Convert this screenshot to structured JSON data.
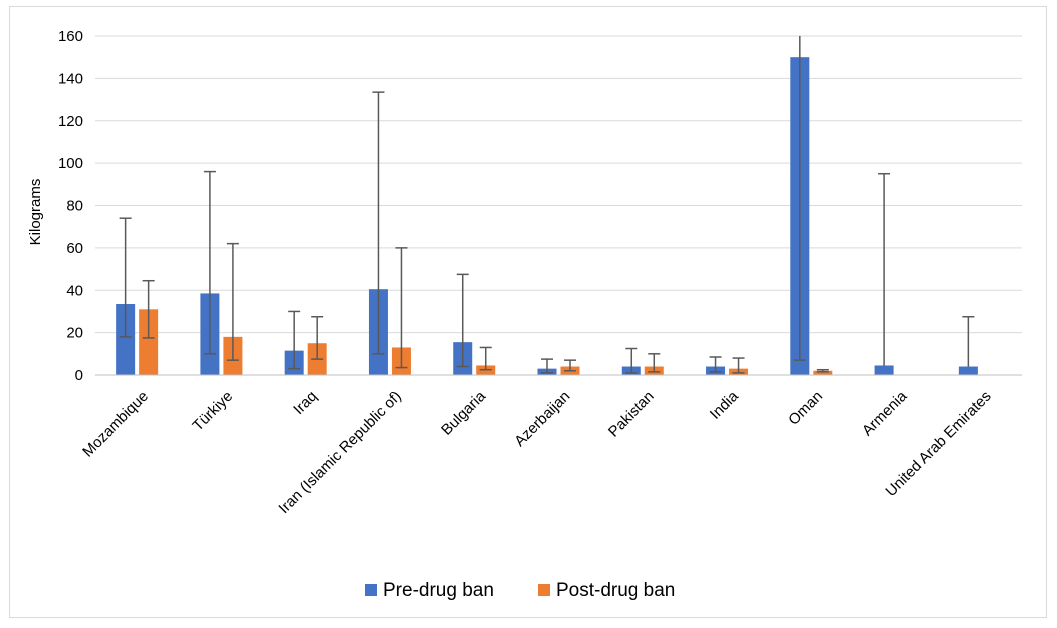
{
  "chart_data": {
    "type": "bar",
    "title": "",
    "xlabel": "",
    "ylabel": "Kilograms",
    "ylim": [
      0,
      160
    ],
    "yticks": [
      0,
      20,
      40,
      60,
      80,
      100,
      120,
      140,
      160
    ],
    "grid": "horizontal",
    "legend_position": "bottom",
    "categories": [
      "Mozambique",
      "Türkiye",
      "Iraq",
      "Iran (Islamic Republic of)",
      "Bulgaria",
      "Azerbaijan",
      "Pakistan",
      "India",
      "Oman",
      "Armenia",
      "United Arab Emirates"
    ],
    "series": [
      {
        "name": "Pre-drug ban",
        "color": "#4472c4",
        "values": [
          33.5,
          38.5,
          11.5,
          40.5,
          15.5,
          3.0,
          4.0,
          4.0,
          150,
          4.5,
          4.0
        ],
        "error_low": [
          18,
          10,
          3,
          10,
          4,
          1,
          1,
          1.5,
          7,
          null,
          null
        ],
        "error_high": [
          74,
          96,
          30,
          133.5,
          47.5,
          7.5,
          12.5,
          8.5,
          160,
          95,
          27.5
        ]
      },
      {
        "name": "Post-drug ban",
        "color": "#ed7d31",
        "values": [
          31,
          18,
          15,
          13,
          4.5,
          4.0,
          4.0,
          3.0,
          2.0,
          null,
          null
        ],
        "error_low": [
          17.5,
          7,
          7.5,
          3.5,
          2.5,
          2,
          1.5,
          1,
          1.5,
          null,
          null
        ],
        "error_high": [
          44.5,
          62,
          27.5,
          60,
          13,
          7,
          10,
          8,
          2.5,
          null,
          null
        ]
      }
    ]
  }
}
